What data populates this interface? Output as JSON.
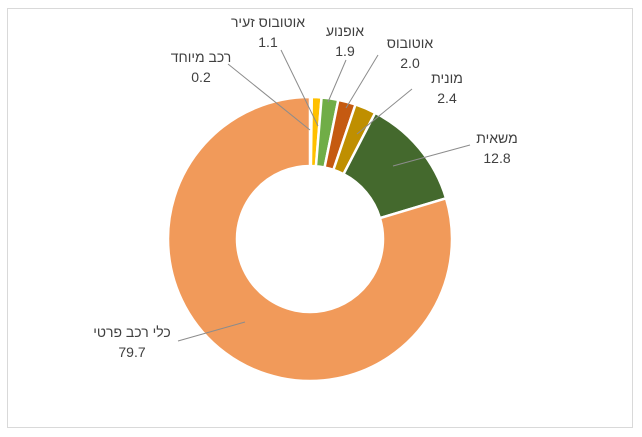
{
  "chart_data": {
    "type": "pie",
    "title": "",
    "donut": true,
    "categories": [
      "רכב מיוחד",
      "אוטובוס זעיר",
      "אופנוע",
      "אוטובוס",
      "מונית",
      "משאית",
      "כלי רכב פרטי"
    ],
    "values": [
      0.2,
      1.1,
      1.9,
      2.0,
      2.4,
      12.8,
      79.7
    ],
    "value_labels": [
      "0.2",
      "1.1",
      "1.9",
      "2.0",
      "2.4",
      "12.8",
      "79.7"
    ],
    "colors": [
      "#4472c4",
      "#ffc000",
      "#70ad47",
      "#c55a11",
      "#bf8f00",
      "#44692d",
      "#f19a5a"
    ],
    "legend": "none",
    "data_labels": "outside with leader lines"
  }
}
